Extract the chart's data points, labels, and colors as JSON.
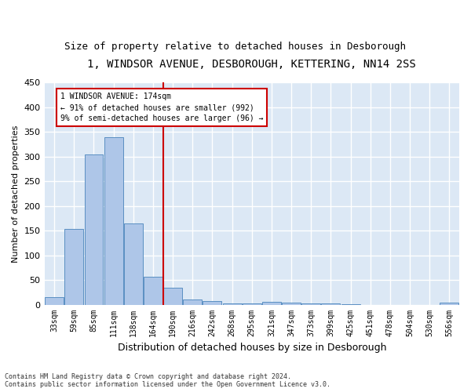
{
  "title1": "1, WINDSOR AVENUE, DESBOROUGH, KETTERING, NN14 2SS",
  "title2": "Size of property relative to detached houses in Desborough",
  "xlabel": "Distribution of detached houses by size in Desborough",
  "ylabel": "Number of detached properties",
  "footnote": "Contains HM Land Registry data © Crown copyright and database right 2024.\nContains public sector information licensed under the Open Government Licence v3.0.",
  "bin_labels": [
    "33sqm",
    "59sqm",
    "85sqm",
    "111sqm",
    "138sqm",
    "164sqm",
    "190sqm",
    "216sqm",
    "242sqm",
    "268sqm",
    "295sqm",
    "321sqm",
    "347sqm",
    "373sqm",
    "399sqm",
    "425sqm",
    "451sqm",
    "478sqm",
    "504sqm",
    "530sqm",
    "556sqm"
  ],
  "bar_values": [
    15,
    153,
    305,
    340,
    165,
    57,
    35,
    10,
    8,
    3,
    2,
    5,
    4,
    3,
    2,
    1,
    0,
    0,
    0,
    0,
    4
  ],
  "bar_color": "#aec6e8",
  "bar_edge_color": "#5a8fc2",
  "highlight_color": "#cc0000",
  "annotation_text": "1 WINDSOR AVENUE: 174sqm\n← 91% of detached houses are smaller (992)\n9% of semi-detached houses are larger (96) →",
  "annotation_box_color": "#ffffff",
  "annotation_box_edge": "#cc0000",
  "ylim": [
    0,
    450
  ],
  "yticks": [
    0,
    50,
    100,
    150,
    200,
    250,
    300,
    350,
    400,
    450
  ],
  "bg_color": "#dce8f5",
  "fig_bg": "#ffffff",
  "ylabel_fontsize": 8,
  "xlabel_fontsize": 9,
  "tick_fontsize": 7,
  "title1_fontsize": 10,
  "title2_fontsize": 9
}
